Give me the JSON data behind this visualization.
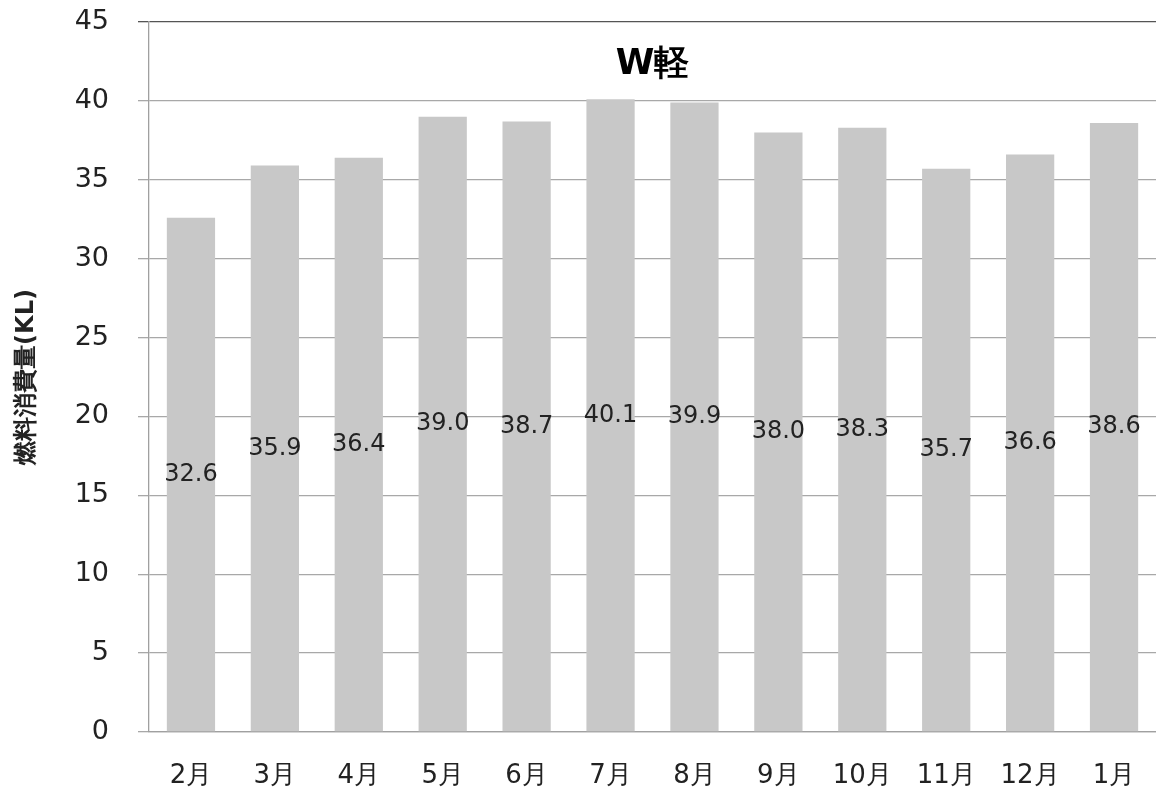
{
  "chart_data": {
    "type": "bar",
    "title": "W軽",
    "ylabel": "燃料消費量(KL)",
    "categories": [
      "2月",
      "3月",
      "4月",
      "5月",
      "6月",
      "7月",
      "8月",
      "9月",
      "10月",
      "11月",
      "12月",
      "1月"
    ],
    "values": [
      32.6,
      35.9,
      36.4,
      39.0,
      38.7,
      40.1,
      39.9,
      38.0,
      38.3,
      35.7,
      36.6,
      38.6
    ],
    "value_labels": [
      "32.6",
      "35.9",
      "36.4",
      "39.0",
      "38.7",
      "40.1",
      "39.9",
      "38.0",
      "38.3",
      "35.7",
      "36.6",
      "38.6"
    ],
    "color": "#c8c8c8",
    "ylim": [
      0,
      45
    ],
    "yticks": [
      0,
      5,
      10,
      15,
      20,
      25,
      30,
      35,
      40,
      45
    ],
    "grid": "y",
    "legend": false
  }
}
